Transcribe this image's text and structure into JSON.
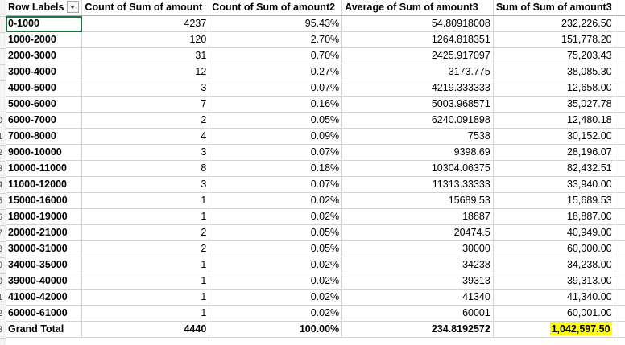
{
  "row_numbers": [
    "",
    "",
    "",
    "",
    "",
    "",
    "",
    "0",
    "1",
    "2",
    "3",
    "4",
    "5",
    "6",
    "7",
    "8",
    "9",
    "0",
    "1",
    "2",
    "3"
  ],
  "pivot": {
    "headers": {
      "row_labels": "Row Labels",
      "col1": "Count of Sum of amount",
      "col2": "Count of Sum of amount2",
      "col3": "Average of Sum of amount3",
      "col4": "Sum of Sum of amount3"
    },
    "rows": [
      {
        "label": "0-1000",
        "count": "4237",
        "pct": "95.43%",
        "avg": "54.80918008",
        "sum": "232,226.50"
      },
      {
        "label": "1000-2000",
        "count": "120",
        "pct": "2.70%",
        "avg": "1264.818351",
        "sum": "151,778.20"
      },
      {
        "label": "2000-3000",
        "count": "31",
        "pct": "0.70%",
        "avg": "2425.917097",
        "sum": "75,203.43"
      },
      {
        "label": "3000-4000",
        "count": "12",
        "pct": "0.27%",
        "avg": "3173.775",
        "sum": "38,085.30"
      },
      {
        "label": "4000-5000",
        "count": "3",
        "pct": "0.07%",
        "avg": "4219.333333",
        "sum": "12,658.00"
      },
      {
        "label": "5000-6000",
        "count": "7",
        "pct": "0.16%",
        "avg": "5003.968571",
        "sum": "35,027.78"
      },
      {
        "label": "6000-7000",
        "count": "2",
        "pct": "0.05%",
        "avg": "6240.091898",
        "sum": "12,480.18"
      },
      {
        "label": "7000-8000",
        "count": "4",
        "pct": "0.09%",
        "avg": "7538",
        "sum": "30,152.00"
      },
      {
        "label": "9000-10000",
        "count": "3",
        "pct": "0.07%",
        "avg": "9398.69",
        "sum": "28,196.07"
      },
      {
        "label": "10000-11000",
        "count": "8",
        "pct": "0.18%",
        "avg": "10304.06375",
        "sum": "82,432.51"
      },
      {
        "label": "11000-12000",
        "count": "3",
        "pct": "0.07%",
        "avg": "11313.33333",
        "sum": "33,940.00"
      },
      {
        "label": "15000-16000",
        "count": "1",
        "pct": "0.02%",
        "avg": "15689.53",
        "sum": "15,689.53"
      },
      {
        "label": "18000-19000",
        "count": "1",
        "pct": "0.02%",
        "avg": "18887",
        "sum": "18,887.00"
      },
      {
        "label": "20000-21000",
        "count": "2",
        "pct": "0.05%",
        "avg": "20474.5",
        "sum": "40,949.00"
      },
      {
        "label": "30000-31000",
        "count": "2",
        "pct": "0.05%",
        "avg": "30000",
        "sum": "60,000.00"
      },
      {
        "label": "34000-35000",
        "count": "1",
        "pct": "0.02%",
        "avg": "34238",
        "sum": "34,238.00"
      },
      {
        "label": "39000-40000",
        "count": "1",
        "pct": "0.02%",
        "avg": "39313",
        "sum": "39,313.00"
      },
      {
        "label": "41000-42000",
        "count": "1",
        "pct": "0.02%",
        "avg": "41340",
        "sum": "41,340.00"
      },
      {
        "label": "60000-61000",
        "count": "1",
        "pct": "0.02%",
        "avg": "60001",
        "sum": "60,001.00"
      }
    ],
    "grand_total": {
      "label": "Grand Total",
      "count": "4440",
      "pct": "100.00%",
      "avg": "234.8192572",
      "sum": "1,042,597.50"
    }
  },
  "colors": {
    "highlight": "#ffff00",
    "selection": "#217346",
    "header_border": "#9bb7d9"
  },
  "icons": {
    "filter": "filter-dropdown-icon"
  }
}
